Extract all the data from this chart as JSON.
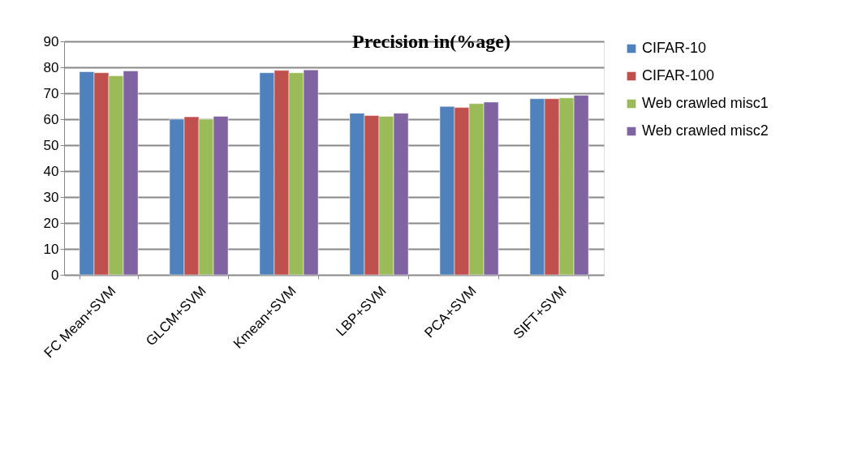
{
  "chart_data": {
    "type": "bar",
    "title": "Precision in(%age)",
    "categories": [
      "FC Mean+SVM",
      "GLCM+SVM",
      "Kmean+SVM",
      "LBP+SVM",
      "PCA+SVM",
      "SIFT+SVM"
    ],
    "series": [
      {
        "name": "CIFAR-10",
        "color": "#4f81bd",
        "values": [
          78.3,
          60.0,
          77.9,
          62.3,
          64.9,
          67.9
        ]
      },
      {
        "name": "CIFAR-100",
        "color": "#c0504d",
        "values": [
          77.9,
          60.9,
          78.8,
          61.4,
          64.5,
          67.9
        ]
      },
      {
        "name": "Web crawled misc1",
        "color": "#9bbb59",
        "values": [
          76.7,
          60.0,
          77.9,
          61.1,
          66.0,
          68.2
        ]
      },
      {
        "name": "Web crawled misc2",
        "color": "#8064a2",
        "values": [
          78.6,
          61.1,
          79.0,
          62.3,
          66.6,
          69.2
        ]
      }
    ],
    "ylim": [
      0,
      90
    ],
    "yticks": [
      0,
      10,
      20,
      30,
      40,
      50,
      60,
      70,
      80,
      90
    ],
    "grid": "y",
    "legend": "right"
  }
}
